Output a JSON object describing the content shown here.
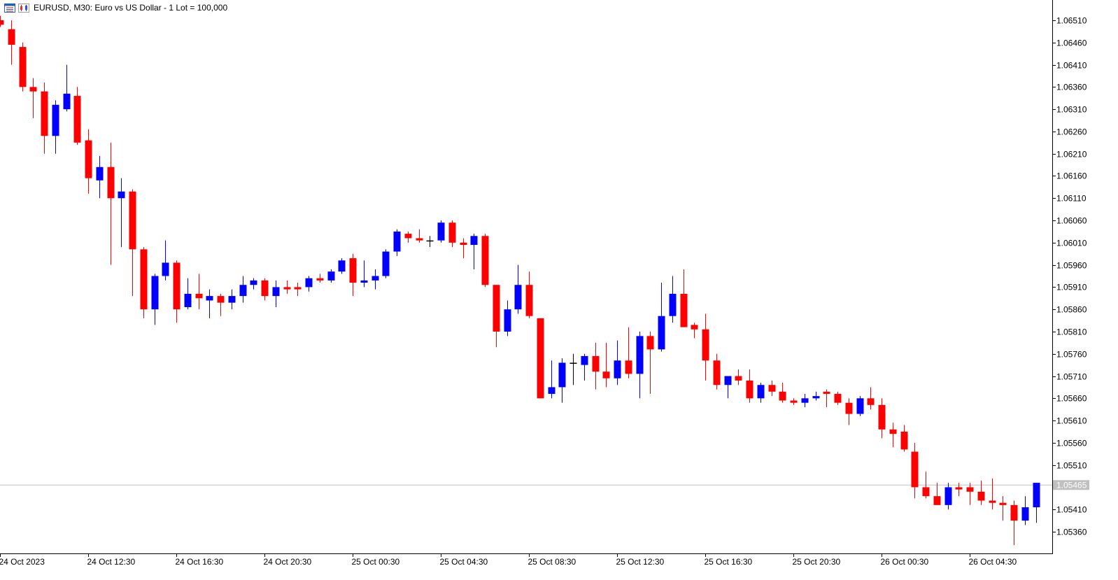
{
  "header": {
    "title": "EURUSD, M30:  Euro vs US Dollar - 1 Lot = 100,000",
    "icons": [
      "chart-window-icon",
      "candlestick-mode-icon"
    ]
  },
  "colors": {
    "bull": "#0000ff",
    "bear": "#ff0000",
    "doji": "#000000",
    "axis": "#000000",
    "bid_line": "#c0c0c0",
    "price_label_bg": "#c0c0c0",
    "price_label_text": "#ffffff"
  },
  "chart_data": {
    "type": "candlestick",
    "symbol": "EURUSD",
    "timeframe": "M30",
    "ylim": [
      1.0532,
      1.06545
    ],
    "y_ticks": [
      "1.06510",
      "1.06460",
      "1.06410",
      "1.06360",
      "1.06310",
      "1.06260",
      "1.06210",
      "1.06160",
      "1.06110",
      "1.06060",
      "1.06010",
      "1.05960",
      "1.05910",
      "1.05860",
      "1.05810",
      "1.05760",
      "1.05710",
      "1.05660",
      "1.05610",
      "1.05560",
      "1.05510",
      "1.05410",
      "1.05360"
    ],
    "x_labels": [
      {
        "index": 0,
        "label": "24 Oct 2023"
      },
      {
        "index": 8,
        "label": "24 Oct 12:30"
      },
      {
        "index": 16,
        "label": "24 Oct 16:30"
      },
      {
        "index": 24,
        "label": "24 Oct 20:30"
      },
      {
        "index": 32,
        "label": "25 Oct 00:30"
      },
      {
        "index": 40,
        "label": "25 Oct 04:30"
      },
      {
        "index": 48,
        "label": "25 Oct 08:30"
      },
      {
        "index": 56,
        "label": "25 Oct 12:30"
      },
      {
        "index": 64,
        "label": "25 Oct 16:30"
      },
      {
        "index": 72,
        "label": "25 Oct 20:30"
      },
      {
        "index": 80,
        "label": "26 Oct 00:30"
      },
      {
        "index": 88,
        "label": "26 Oct 04:30"
      }
    ],
    "current_price": "1.05465",
    "grid": false,
    "candles": [
      {
        "o": 1.0651,
        "h": 1.0652,
        "l": 1.06495,
        "c": 1.065
      },
      {
        "o": 1.0649,
        "h": 1.0651,
        "l": 1.0641,
        "c": 1.06455
      },
      {
        "o": 1.0645,
        "h": 1.0646,
        "l": 1.0635,
        "c": 1.0636
      },
      {
        "o": 1.0636,
        "h": 1.0638,
        "l": 1.0629,
        "c": 1.0635
      },
      {
        "o": 1.0635,
        "h": 1.0637,
        "l": 1.0621,
        "c": 1.0625
      },
      {
        "o": 1.0625,
        "h": 1.0633,
        "l": 1.0621,
        "c": 1.0632
      },
      {
        "o": 1.0631,
        "h": 1.0641,
        "l": 1.06305,
        "c": 1.06345
      },
      {
        "o": 1.0634,
        "h": 1.0636,
        "l": 1.0623,
        "c": 1.06235
      },
      {
        "o": 1.0624,
        "h": 1.06265,
        "l": 1.0612,
        "c": 1.06155
      },
      {
        "o": 1.0615,
        "h": 1.06205,
        "l": 1.0611,
        "c": 1.0618
      },
      {
        "o": 1.0618,
        "h": 1.06235,
        "l": 1.0596,
        "c": 1.0611
      },
      {
        "o": 1.0611,
        "h": 1.06155,
        "l": 1.06,
        "c": 1.06125
      },
      {
        "o": 1.06125,
        "h": 1.0613,
        "l": 1.0589,
        "c": 1.05995
      },
      {
        "o": 1.05995,
        "h": 1.06,
        "l": 1.0584,
        "c": 1.0586
      },
      {
        "o": 1.0586,
        "h": 1.0594,
        "l": 1.05825,
        "c": 1.05935
      },
      {
        "o": 1.05935,
        "h": 1.06015,
        "l": 1.05925,
        "c": 1.05965
      },
      {
        "o": 1.05965,
        "h": 1.0597,
        "l": 1.0583,
        "c": 1.0586
      },
      {
        "o": 1.05865,
        "h": 1.0593,
        "l": 1.0586,
        "c": 1.05895
      },
      {
        "o": 1.05895,
        "h": 1.0594,
        "l": 1.0586,
        "c": 1.05885
      },
      {
        "o": 1.0588,
        "h": 1.05905,
        "l": 1.0584,
        "c": 1.0589
      },
      {
        "o": 1.0589,
        "h": 1.05895,
        "l": 1.05845,
        "c": 1.05875
      },
      {
        "o": 1.05875,
        "h": 1.05905,
        "l": 1.0586,
        "c": 1.0589
      },
      {
        "o": 1.0589,
        "h": 1.05935,
        "l": 1.05875,
        "c": 1.05915
      },
      {
        "o": 1.05915,
        "h": 1.0593,
        "l": 1.05905,
        "c": 1.05925
      },
      {
        "o": 1.05925,
        "h": 1.0593,
        "l": 1.0588,
        "c": 1.0589
      },
      {
        "o": 1.0589,
        "h": 1.05925,
        "l": 1.05865,
        "c": 1.0591
      },
      {
        "o": 1.0591,
        "h": 1.05925,
        "l": 1.05895,
        "c": 1.05905
      },
      {
        "o": 1.0591,
        "h": 1.0592,
        "l": 1.0589,
        "c": 1.05905
      },
      {
        "o": 1.0591,
        "h": 1.05935,
        "l": 1.059,
        "c": 1.0593
      },
      {
        "o": 1.0593,
        "h": 1.0594,
        "l": 1.0592,
        "c": 1.05925
      },
      {
        "o": 1.05925,
        "h": 1.0595,
        "l": 1.0592,
        "c": 1.05945
      },
      {
        "o": 1.05945,
        "h": 1.05975,
        "l": 1.0594,
        "c": 1.0597
      },
      {
        "o": 1.05975,
        "h": 1.05985,
        "l": 1.0589,
        "c": 1.0592
      },
      {
        "o": 1.0592,
        "h": 1.0597,
        "l": 1.0591,
        "c": 1.05925
      },
      {
        "o": 1.05925,
        "h": 1.0595,
        "l": 1.05905,
        "c": 1.05935
      },
      {
        "o": 1.05935,
        "h": 1.05995,
        "l": 1.0593,
        "c": 1.0599
      },
      {
        "o": 1.0599,
        "h": 1.0604,
        "l": 1.0598,
        "c": 1.06035
      },
      {
        "o": 1.0603,
        "h": 1.06035,
        "l": 1.0601,
        "c": 1.0602
      },
      {
        "o": 1.0602,
        "h": 1.0604,
        "l": 1.0601,
        "c": 1.06015
      },
      {
        "o": 1.06015,
        "h": 1.06025,
        "l": 1.06,
        "c": 1.06015
      },
      {
        "o": 1.06015,
        "h": 1.0606,
        "l": 1.0601,
        "c": 1.06055
      },
      {
        "o": 1.06055,
        "h": 1.0606,
        "l": 1.06,
        "c": 1.0601
      },
      {
        "o": 1.0601,
        "h": 1.0602,
        "l": 1.05975,
        "c": 1.06005
      },
      {
        "o": 1.06005,
        "h": 1.0603,
        "l": 1.0595,
        "c": 1.06025
      },
      {
        "o": 1.06025,
        "h": 1.0603,
        "l": 1.0591,
        "c": 1.05915
      },
      {
        "o": 1.05915,
        "h": 1.05915,
        "l": 1.05775,
        "c": 1.0581
      },
      {
        "o": 1.0581,
        "h": 1.0588,
        "l": 1.058,
        "c": 1.0586
      },
      {
        "o": 1.0586,
        "h": 1.0596,
        "l": 1.0585,
        "c": 1.05915
      },
      {
        "o": 1.05915,
        "h": 1.05945,
        "l": 1.0584,
        "c": 1.05845
      },
      {
        "o": 1.0584,
        "h": 1.0584,
        "l": 1.0566,
        "c": 1.0566
      },
      {
        "o": 1.0567,
        "h": 1.05745,
        "l": 1.0566,
        "c": 1.05685
      },
      {
        "o": 1.05685,
        "h": 1.0575,
        "l": 1.0565,
        "c": 1.0574
      },
      {
        "o": 1.0574,
        "h": 1.0576,
        "l": 1.0569,
        "c": 1.0574
      },
      {
        "o": 1.05735,
        "h": 1.0576,
        "l": 1.057,
        "c": 1.05755
      },
      {
        "o": 1.05755,
        "h": 1.05785,
        "l": 1.0568,
        "c": 1.0572
      },
      {
        "o": 1.0572,
        "h": 1.05785,
        "l": 1.05685,
        "c": 1.05705
      },
      {
        "o": 1.05705,
        "h": 1.0579,
        "l": 1.0569,
        "c": 1.05745
      },
      {
        "o": 1.05745,
        "h": 1.0582,
        "l": 1.05705,
        "c": 1.05715
      },
      {
        "o": 1.05715,
        "h": 1.0581,
        "l": 1.0566,
        "c": 1.058
      },
      {
        "o": 1.058,
        "h": 1.0581,
        "l": 1.0567,
        "c": 1.0577
      },
      {
        "o": 1.0577,
        "h": 1.0592,
        "l": 1.05765,
        "c": 1.05845
      },
      {
        "o": 1.05845,
        "h": 1.05935,
        "l": 1.0583,
        "c": 1.05895
      },
      {
        "o": 1.05895,
        "h": 1.0595,
        "l": 1.0582,
        "c": 1.0582
      },
      {
        "o": 1.05825,
        "h": 1.0583,
        "l": 1.05795,
        "c": 1.05815
      },
      {
        "o": 1.05815,
        "h": 1.0585,
        "l": 1.057,
        "c": 1.05745
      },
      {
        "o": 1.05745,
        "h": 1.0576,
        "l": 1.0568,
        "c": 1.0569
      },
      {
        "o": 1.0569,
        "h": 1.0571,
        "l": 1.0566,
        "c": 1.0571
      },
      {
        "o": 1.0571,
        "h": 1.05725,
        "l": 1.0569,
        "c": 1.057
      },
      {
        "o": 1.057,
        "h": 1.05725,
        "l": 1.0565,
        "c": 1.0566
      },
      {
        "o": 1.0566,
        "h": 1.05695,
        "l": 1.0565,
        "c": 1.0569
      },
      {
        "o": 1.0569,
        "h": 1.057,
        "l": 1.05665,
        "c": 1.05675
      },
      {
        "o": 1.05675,
        "h": 1.05695,
        "l": 1.0565,
        "c": 1.05655
      },
      {
        "o": 1.05655,
        "h": 1.0566,
        "l": 1.05645,
        "c": 1.0565
      },
      {
        "o": 1.0565,
        "h": 1.0567,
        "l": 1.0564,
        "c": 1.0566
      },
      {
        "o": 1.0566,
        "h": 1.05675,
        "l": 1.05655,
        "c": 1.05665
      },
      {
        "o": 1.05675,
        "h": 1.0568,
        "l": 1.0564,
        "c": 1.0567
      },
      {
        "o": 1.0567,
        "h": 1.05675,
        "l": 1.05645,
        "c": 1.0565
      },
      {
        "o": 1.0565,
        "h": 1.0566,
        "l": 1.056,
        "c": 1.05625
      },
      {
        "o": 1.05625,
        "h": 1.05665,
        "l": 1.0562,
        "c": 1.0566
      },
      {
        "o": 1.0566,
        "h": 1.05685,
        "l": 1.05635,
        "c": 1.05645
      },
      {
        "o": 1.05645,
        "h": 1.0566,
        "l": 1.0557,
        "c": 1.0559
      },
      {
        "o": 1.0559,
        "h": 1.05605,
        "l": 1.0555,
        "c": 1.0558
      },
      {
        "o": 1.05585,
        "h": 1.056,
        "l": 1.0554,
        "c": 1.05545
      },
      {
        "o": 1.0554,
        "h": 1.0556,
        "l": 1.05435,
        "c": 1.0546
      },
      {
        "o": 1.0546,
        "h": 1.05495,
        "l": 1.05435,
        "c": 1.0544
      },
      {
        "o": 1.0544,
        "h": 1.0547,
        "l": 1.0543,
        "c": 1.0542
      },
      {
        "o": 1.0542,
        "h": 1.0547,
        "l": 1.0541,
        "c": 1.0546
      },
      {
        "o": 1.0546,
        "h": 1.0547,
        "l": 1.0544,
        "c": 1.05455
      },
      {
        "o": 1.0546,
        "h": 1.0547,
        "l": 1.0542,
        "c": 1.0545
      },
      {
        "o": 1.0545,
        "h": 1.05475,
        "l": 1.0542,
        "c": 1.0543
      },
      {
        "o": 1.0543,
        "h": 1.0548,
        "l": 1.0541,
        "c": 1.05425
      },
      {
        "o": 1.05425,
        "h": 1.0544,
        "l": 1.05385,
        "c": 1.0542
      },
      {
        "o": 1.0542,
        "h": 1.0543,
        "l": 1.0533,
        "c": 1.05385
      },
      {
        "o": 1.05385,
        "h": 1.0544,
        "l": 1.05375,
        "c": 1.05415
      },
      {
        "o": 1.05415,
        "h": 1.0547,
        "l": 1.0538,
        "c": 1.0547
      }
    ]
  }
}
